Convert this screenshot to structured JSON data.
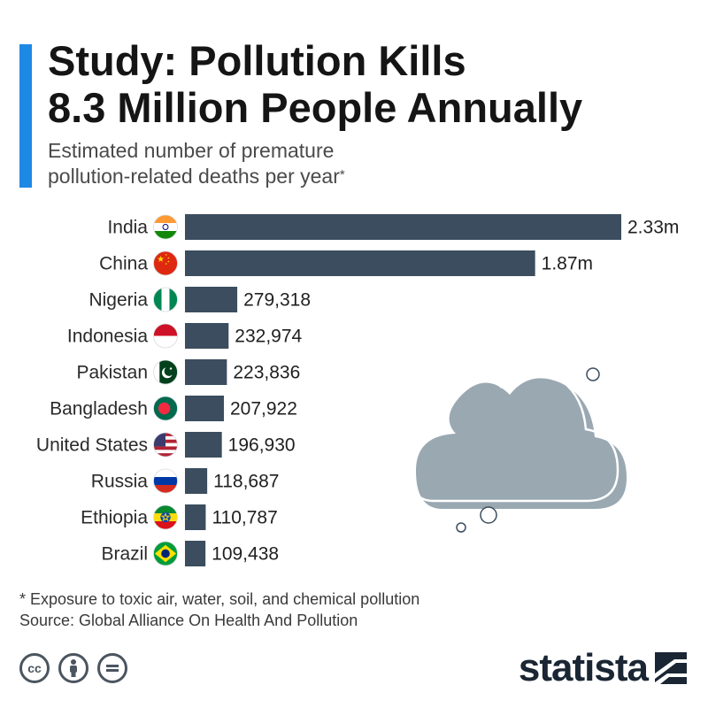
{
  "header": {
    "title_line1": "Study: Pollution Kills",
    "title_line2": "8.3 Million People Annually",
    "subtitle_line1": "Estimated number of premature",
    "subtitle_line2": "pollution-related deaths per year",
    "subtitle_marker": "*"
  },
  "chart_data": {
    "type": "bar",
    "orientation": "horizontal",
    "categories": [
      "India",
      "China",
      "Nigeria",
      "Indonesia",
      "Pakistan",
      "Bangladesh",
      "United States",
      "Russia",
      "Ethiopia",
      "Brazil"
    ],
    "values": [
      2330000,
      1870000,
      279318,
      232974,
      223836,
      207922,
      196930,
      118687,
      110787,
      109438
    ],
    "labels": [
      "2.33m",
      "1.87m",
      "279,318",
      "232,974",
      "223,836",
      "207,922",
      "196,930",
      "118,687",
      "110,787",
      "109,438"
    ],
    "flags": [
      "india-flag-icon",
      "china-flag-icon",
      "nigeria-flag-icon",
      "indonesia-flag-icon",
      "pakistan-flag-icon",
      "bangladesh-flag-icon",
      "united-states-flag-icon",
      "russia-flag-icon",
      "ethiopia-flag-icon",
      "brazil-flag-icon"
    ],
    "xlim": [
      0,
      2330000
    ],
    "bar_color": "#3b4d5e",
    "grid": false
  },
  "footnote": {
    "note": "* Exposure to toxic air, water, soil, and chemical pollution",
    "source": "Source: Global Alliance On Health And Pollution"
  },
  "license_icons": [
    "creative-commons-icon",
    "attribution-icon",
    "no-derivatives-icon"
  ],
  "brand": {
    "name": "statista",
    "color": "#1a2633"
  },
  "decoration": {
    "cloud_color": "#9aa8b2",
    "accent_color": "#1e88e5"
  }
}
